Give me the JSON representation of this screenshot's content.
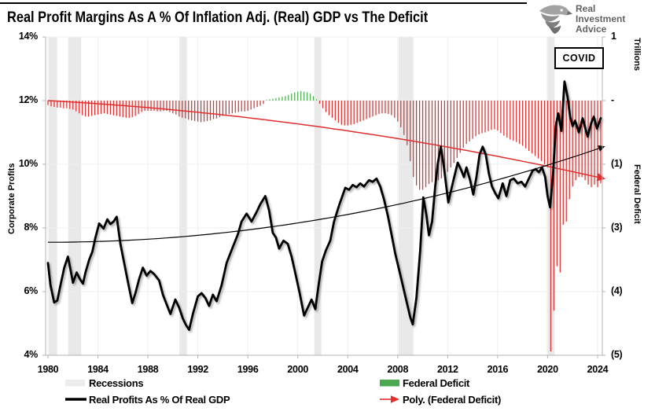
{
  "title": "Real Profit Margins As A % Of Inflation Adj. (Real) GDP vs The Deficit",
  "logo": {
    "line1": "Real",
    "line2": "Investment",
    "line3": "Advice",
    "icon": "eagle-icon"
  },
  "covid_label": "COVID",
  "axes": {
    "left": {
      "title": "Corporate Profits",
      "tick_labels": [
        "14%",
        "12%",
        "10%",
        "8%",
        "6%",
        "4%"
      ]
    },
    "right": {
      "title": "Federal Deficit",
      "unit_label": "Trillions",
      "tick_labels": [
        "1",
        "-",
        "(1)",
        "(3)",
        "(4)",
        "(5)"
      ]
    },
    "x": {
      "tick_labels": [
        "1980",
        "1984",
        "1988",
        "1992",
        "1996",
        "2000",
        "2004",
        "2008",
        "2012",
        "2016",
        "2020",
        "2024"
      ]
    }
  },
  "legend": {
    "recessions": "Recessions",
    "federal_deficit": "Federal Deficit",
    "real_profits": "Real Profits As % Of Real GDP",
    "poly_deficit": "Poly. (Federal Deficit)"
  },
  "colors": {
    "deficit_red": "#e12f2f",
    "surplus_green": "#4dae51",
    "profits_black": "#000000",
    "recession_gray": "#e9e9e9",
    "grid_gray": "#efefef",
    "axis_gray": "#b3b3b3"
  },
  "chart_data": {
    "type": "combo",
    "title": "Real Profit Margins As A % Of Inflation Adj. (Real) GDP vs The Deficit",
    "x_range": [
      1980,
      2024.6
    ],
    "left_axis": {
      "label": "Corporate Profits",
      "unit": "% of real GDP",
      "range": [
        4,
        14
      ],
      "ticks": [
        14,
        12,
        10,
        8,
        6,
        4
      ]
    },
    "right_axis": {
      "label": "Federal Deficit",
      "unit": "Trillions",
      "displayed_ticks": [
        "1",
        "-",
        "(1)",
        "(3)",
        "(4)",
        "(5)"
      ],
      "zero_at_left_pct": 12,
      "trillions_per_2pct": 2
    },
    "recessions": [
      [
        1980.06,
        1980.73
      ],
      [
        1981.62,
        1982.66
      ],
      [
        1990.52,
        1991.12
      ],
      [
        2001.32,
        2001.88
      ],
      [
        2008.07,
        2009.25
      ],
      [
        2019.95,
        2020.55
      ]
    ],
    "annotations": [
      {
        "text": "COVID",
        "x": 2020.6,
        "y_left_pct": 13.5
      }
    ],
    "series": [
      {
        "name": "Real Profits As % Of Real GDP",
        "type": "line",
        "axis": "left",
        "color": "#000000",
        "points": [
          [
            1980.0,
            6.9
          ],
          [
            1980.2,
            6.2
          ],
          [
            1980.5,
            5.66
          ],
          [
            1980.75,
            5.72
          ],
          [
            1981.0,
            6.2
          ],
          [
            1981.3,
            6.75
          ],
          [
            1981.6,
            7.1
          ],
          [
            1981.8,
            6.7
          ],
          [
            1982.0,
            6.28
          ],
          [
            1982.3,
            6.6
          ],
          [
            1982.55,
            6.4
          ],
          [
            1982.8,
            6.25
          ],
          [
            1983.0,
            6.6
          ],
          [
            1983.3,
            7.0
          ],
          [
            1983.55,
            7.25
          ],
          [
            1983.8,
            7.7
          ],
          [
            1984.1,
            8.14
          ],
          [
            1984.45,
            7.98
          ],
          [
            1984.75,
            8.27
          ],
          [
            1985.0,
            8.12
          ],
          [
            1985.25,
            8.2
          ],
          [
            1985.5,
            8.35
          ],
          [
            1985.8,
            7.5
          ],
          [
            1986.1,
            6.9
          ],
          [
            1986.4,
            6.3
          ],
          [
            1986.75,
            5.64
          ],
          [
            1987.0,
            5.95
          ],
          [
            1987.3,
            6.4
          ],
          [
            1987.6,
            6.75
          ],
          [
            1987.9,
            6.5
          ],
          [
            1988.2,
            6.65
          ],
          [
            1988.5,
            6.55
          ],
          [
            1988.9,
            6.35
          ],
          [
            1989.2,
            5.9
          ],
          [
            1989.55,
            5.55
          ],
          [
            1989.8,
            5.3
          ],
          [
            1990.2,
            5.75
          ],
          [
            1990.5,
            5.5
          ],
          [
            1990.8,
            5.15
          ],
          [
            1991.05,
            4.95
          ],
          [
            1991.3,
            4.8
          ],
          [
            1991.6,
            5.3
          ],
          [
            1992.0,
            5.85
          ],
          [
            1992.3,
            5.95
          ],
          [
            1992.6,
            5.8
          ],
          [
            1992.9,
            5.55
          ],
          [
            1993.2,
            5.9
          ],
          [
            1993.5,
            5.7
          ],
          [
            1993.9,
            6.2
          ],
          [
            1994.3,
            6.9
          ],
          [
            1994.8,
            7.4
          ],
          [
            1995.2,
            7.8
          ],
          [
            1995.5,
            8.2
          ],
          [
            1995.9,
            8.45
          ],
          [
            1996.3,
            8.2
          ],
          [
            1996.7,
            8.5
          ],
          [
            1997.0,
            8.75
          ],
          [
            1997.4,
            9.0
          ],
          [
            1997.7,
            8.55
          ],
          [
            1998.0,
            7.85
          ],
          [
            1998.25,
            7.7
          ],
          [
            1998.5,
            7.35
          ],
          [
            1998.85,
            7.6
          ],
          [
            1999.2,
            7.5
          ],
          [
            1999.5,
            7.1
          ],
          [
            1999.85,
            6.5
          ],
          [
            2000.15,
            5.95
          ],
          [
            2000.5,
            5.25
          ],
          [
            2000.8,
            5.5
          ],
          [
            2001.1,
            5.75
          ],
          [
            2001.4,
            5.45
          ],
          [
            2001.7,
            6.3
          ],
          [
            2001.95,
            6.95
          ],
          [
            2002.25,
            7.3
          ],
          [
            2002.6,
            7.6
          ],
          [
            2002.9,
            8.2
          ],
          [
            2003.3,
            8.7
          ],
          [
            2003.8,
            9.26
          ],
          [
            2004.1,
            9.2
          ],
          [
            2004.4,
            9.35
          ],
          [
            2004.7,
            9.28
          ],
          [
            2005.0,
            9.4
          ],
          [
            2005.3,
            9.3
          ],
          [
            2005.7,
            9.5
          ],
          [
            2006.0,
            9.45
          ],
          [
            2006.3,
            9.55
          ],
          [
            2006.6,
            9.3
          ],
          [
            2006.9,
            8.9
          ],
          [
            2007.2,
            8.4
          ],
          [
            2007.5,
            7.8
          ],
          [
            2007.8,
            7.2
          ],
          [
            2008.1,
            6.7
          ],
          [
            2008.4,
            6.2
          ],
          [
            2008.7,
            5.7
          ],
          [
            2009.0,
            5.2
          ],
          [
            2009.2,
            4.97
          ],
          [
            2009.5,
            5.8
          ],
          [
            2009.8,
            7.3
          ],
          [
            2010.05,
            8.96
          ],
          [
            2010.3,
            8.4
          ],
          [
            2010.5,
            7.77
          ],
          [
            2010.75,
            8.2
          ],
          [
            2011.0,
            9.3
          ],
          [
            2011.2,
            10.0
          ],
          [
            2011.45,
            10.55
          ],
          [
            2011.7,
            9.9
          ],
          [
            2012.05,
            8.8
          ],
          [
            2012.4,
            9.4
          ],
          [
            2012.8,
            10.05
          ],
          [
            2013.05,
            9.85
          ],
          [
            2013.3,
            9.6
          ],
          [
            2013.5,
            9.9
          ],
          [
            2013.8,
            9.5
          ],
          [
            2014.05,
            9.05
          ],
          [
            2014.3,
            9.6
          ],
          [
            2014.55,
            10.3
          ],
          [
            2014.8,
            10.55
          ],
          [
            2015.05,
            10.3
          ],
          [
            2015.3,
            9.7
          ],
          [
            2015.55,
            9.3
          ],
          [
            2015.8,
            9.1
          ],
          [
            2016.05,
            8.93
          ],
          [
            2016.4,
            9.4
          ],
          [
            2016.7,
            9.0
          ],
          [
            2017.0,
            9.5
          ],
          [
            2017.3,
            9.55
          ],
          [
            2017.6,
            9.4
          ],
          [
            2017.9,
            9.45
          ],
          [
            2018.2,
            9.3
          ],
          [
            2018.5,
            9.55
          ],
          [
            2018.8,
            9.8
          ],
          [
            2019.05,
            9.85
          ],
          [
            2019.3,
            9.75
          ],
          [
            2019.55,
            9.9
          ],
          [
            2019.8,
            9.6
          ],
          [
            2020.0,
            9.0
          ],
          [
            2020.2,
            8.65
          ],
          [
            2020.45,
            9.8
          ],
          [
            2020.65,
            11.2
          ],
          [
            2020.85,
            11.6
          ],
          [
            2021.1,
            11.05
          ],
          [
            2021.35,
            12.6
          ],
          [
            2021.6,
            12.1
          ],
          [
            2021.8,
            11.5
          ],
          [
            2022.0,
            11.2
          ],
          [
            2022.2,
            11.37
          ],
          [
            2022.5,
            11.0
          ],
          [
            2022.8,
            11.45
          ],
          [
            2023.2,
            10.87
          ],
          [
            2023.5,
            11.3
          ],
          [
            2023.7,
            11.5
          ],
          [
            2023.95,
            11.12
          ],
          [
            2024.25,
            11.45
          ]
        ]
      },
      {
        "name": "Federal Deficit",
        "type": "bar",
        "axis": "right",
        "unit": "trillions USD",
        "x_start": 1980.0,
        "x_step": 0.25,
        "color_negative": "#e12f2f",
        "color_positive": "#4dae51",
        "values": [
          -0.07,
          -0.09,
          -0.1,
          -0.11,
          -0.11,
          -0.12,
          -0.12,
          -0.13,
          -0.14,
          -0.17,
          -0.2,
          -0.23,
          -0.25,
          -0.25,
          -0.24,
          -0.23,
          -0.22,
          -0.21,
          -0.2,
          -0.21,
          -0.22,
          -0.23,
          -0.24,
          -0.25,
          -0.26,
          -0.27,
          -0.27,
          -0.26,
          -0.24,
          -0.21,
          -0.18,
          -0.16,
          -0.16,
          -0.16,
          -0.16,
          -0.17,
          -0.17,
          -0.16,
          -0.16,
          -0.18,
          -0.2,
          -0.22,
          -0.25,
          -0.27,
          -0.28,
          -0.3,
          -0.31,
          -0.32,
          -0.33,
          -0.34,
          -0.33,
          -0.32,
          -0.31,
          -0.29,
          -0.28,
          -0.26,
          -0.24,
          -0.22,
          -0.21,
          -0.2,
          -0.19,
          -0.18,
          -0.17,
          -0.17,
          -0.16,
          -0.14,
          -0.12,
          -0.1,
          -0.08,
          -0.05,
          0.01,
          0.02,
          0.03,
          0.04,
          0.05,
          0.06,
          0.07,
          0.09,
          0.11,
          0.13,
          0.14,
          0.15,
          0.14,
          0.13,
          0.11,
          0.07,
          0.02,
          -0.05,
          -0.12,
          -0.18,
          -0.23,
          -0.27,
          -0.31,
          -0.35,
          -0.38,
          -0.39,
          -0.39,
          -0.38,
          -0.37,
          -0.35,
          -0.33,
          -0.31,
          -0.29,
          -0.27,
          -0.25,
          -0.23,
          -0.21,
          -0.2,
          -0.2,
          -0.21,
          -0.23,
          -0.27,
          -0.33,
          -0.42,
          -0.54,
          -0.7,
          -0.95,
          -1.2,
          -1.33,
          -1.4,
          -1.4,
          -1.36,
          -1.31,
          -1.28,
          -1.27,
          -1.25,
          -1.22,
          -1.17,
          -1.12,
          -1.05,
          -0.98,
          -0.9,
          -0.82,
          -0.74,
          -0.68,
          -0.64,
          -0.6,
          -0.56,
          -0.53,
          -0.51,
          -0.5,
          -0.48,
          -0.46,
          -0.45,
          -0.47,
          -0.51,
          -0.55,
          -0.58,
          -0.61,
          -0.63,
          -0.65,
          -0.68,
          -0.71,
          -0.75,
          -0.79,
          -0.83,
          -0.87,
          -0.91,
          -0.95,
          -1.0,
          -1.05,
          -3.94,
          -3.3,
          -2.6,
          -2.7,
          -1.95,
          -1.9,
          -1.55,
          -1.35,
          -1.25,
          -1.2,
          -1.2,
          -1.25,
          -1.32,
          -1.36,
          -1.32,
          -1.36,
          -1.3
        ]
      },
      {
        "name": "Poly. (Real Profits)",
        "type": "trend",
        "axis": "left",
        "color": "#000000",
        "quadratic": {
          "base_year": 1980,
          "a": 0.001515,
          "b": 0,
          "c": 7.55
        },
        "t_end": 44.5
      },
      {
        "name": "Poly. (Federal Deficit)",
        "type": "trend",
        "axis": "right",
        "color": "#e12f2f",
        "quadratic": {
          "base_year": 1980,
          "a": -0.000377,
          "b": -0.01075,
          "c": 0
        },
        "t_end": 44.5
      }
    ]
  }
}
